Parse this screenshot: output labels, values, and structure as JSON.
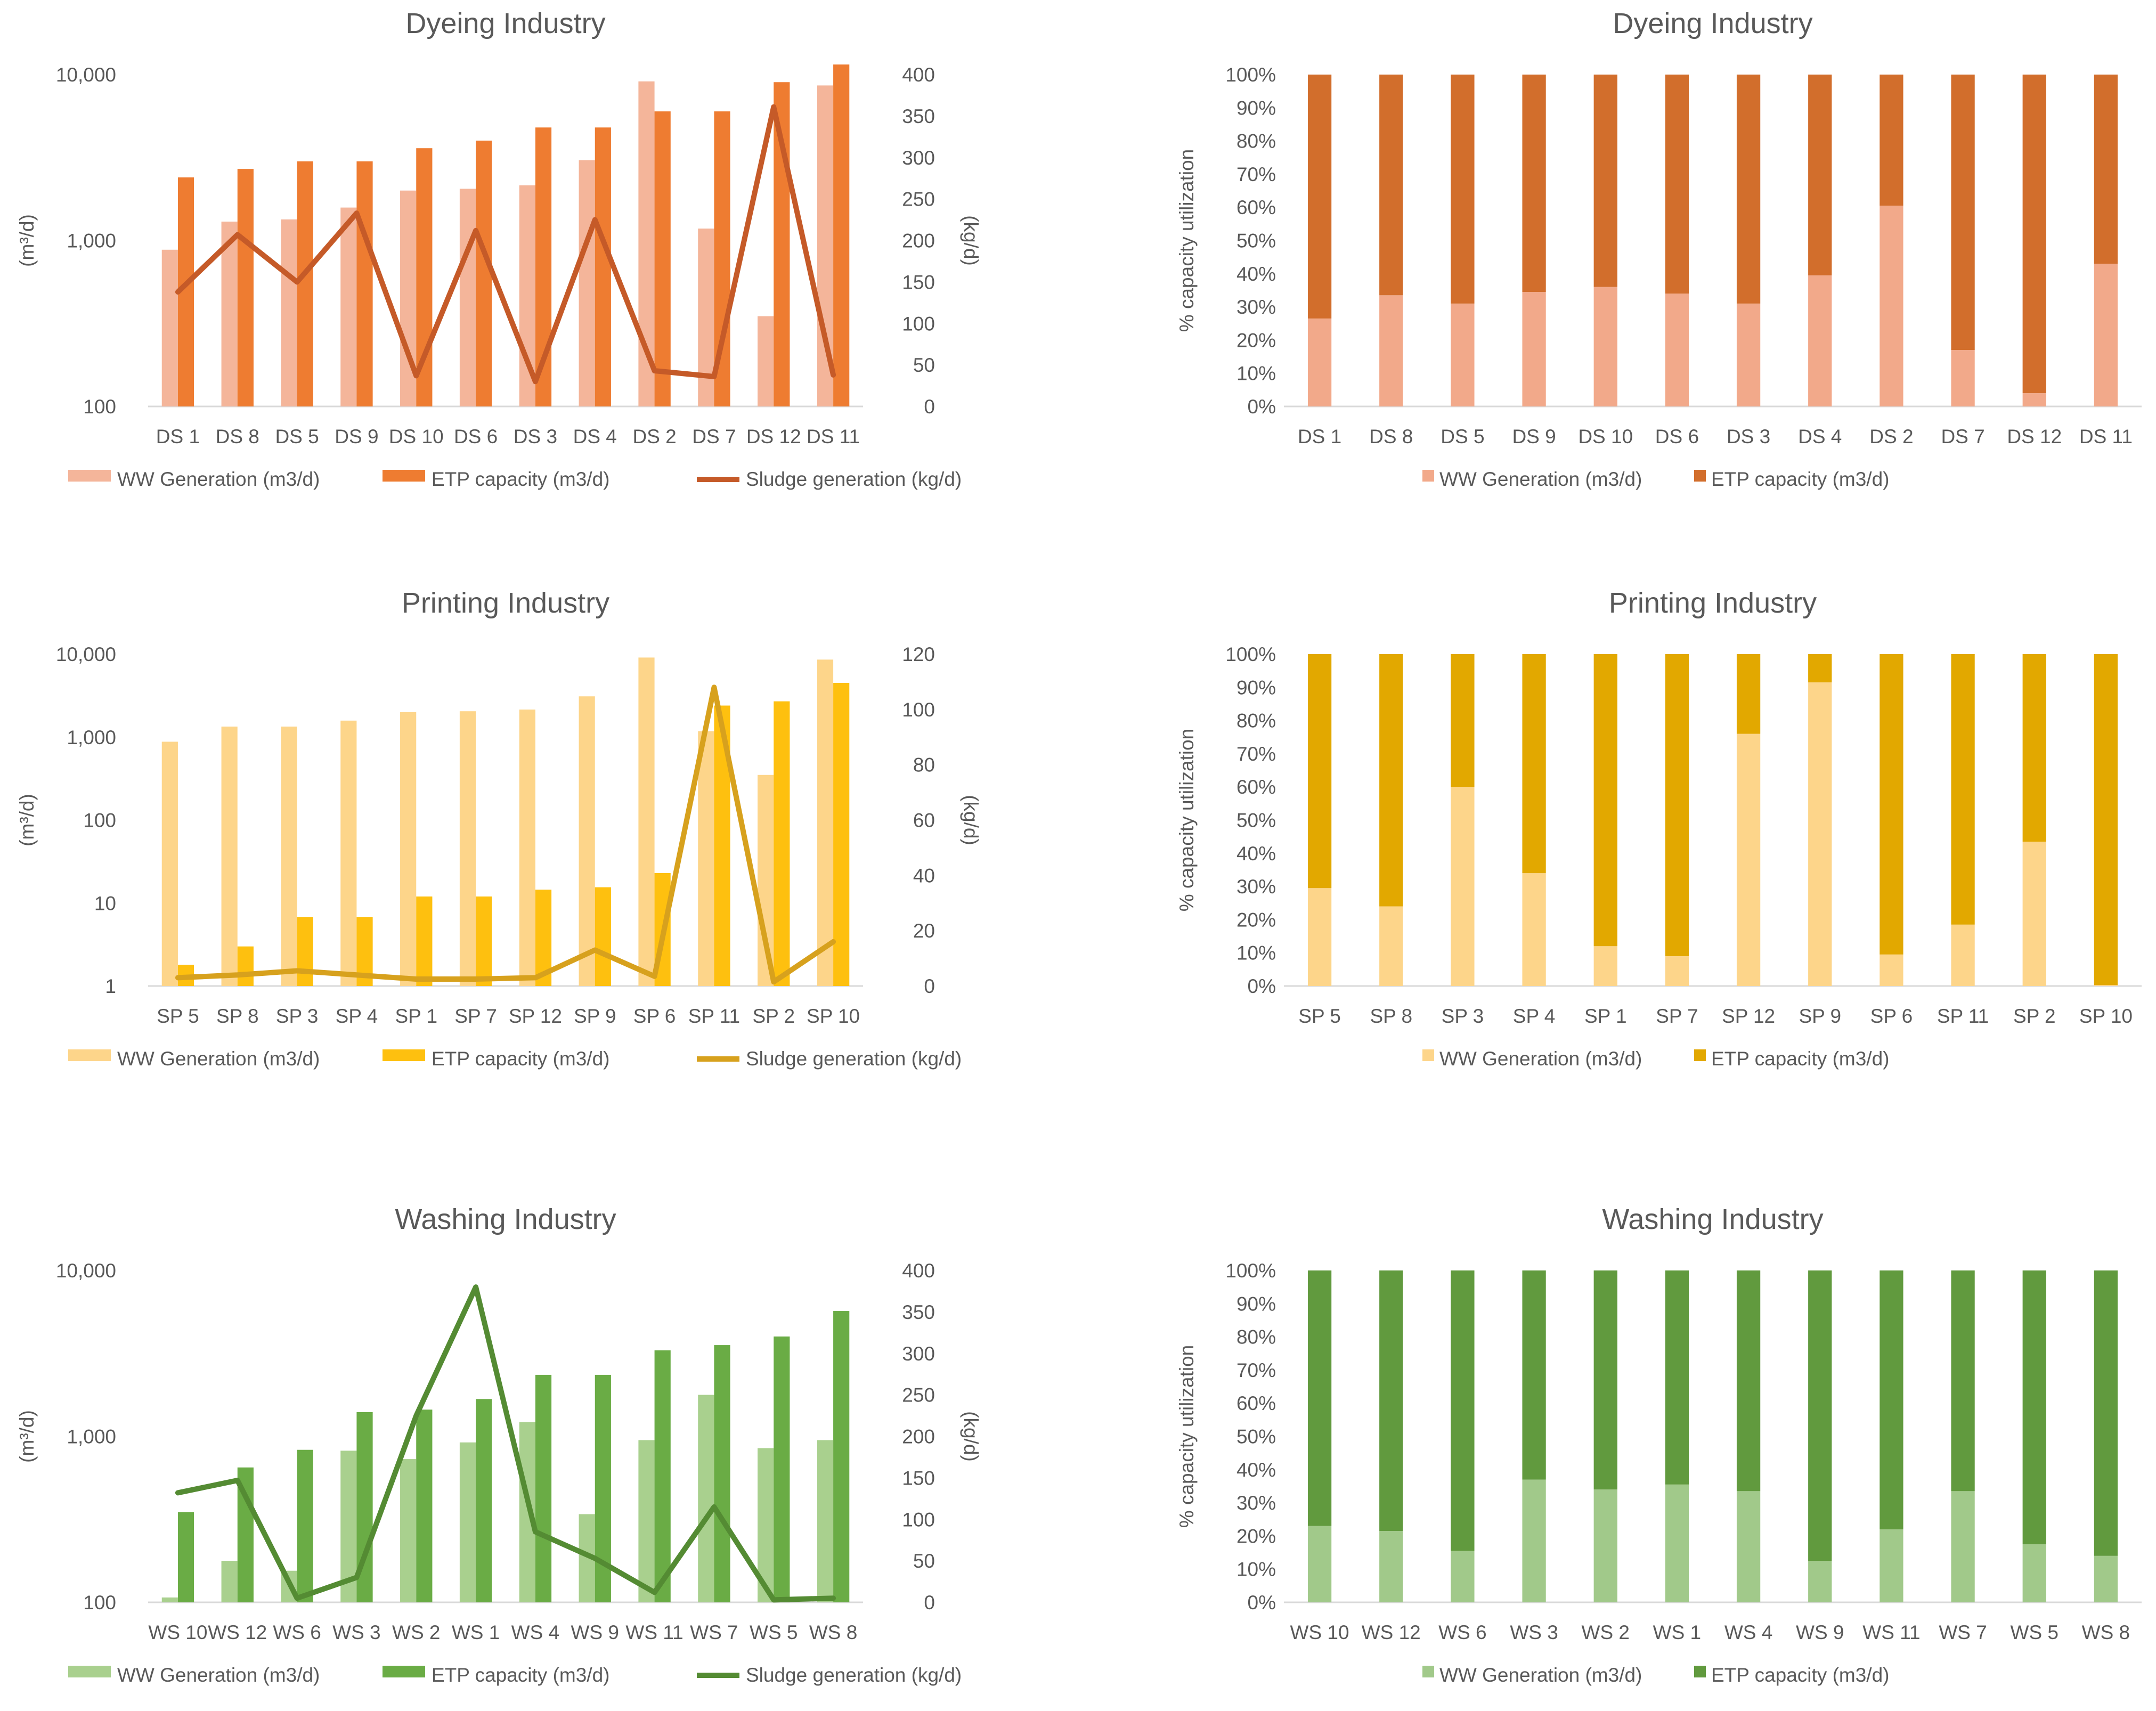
{
  "chart_data": [
    {
      "type": "bar",
      "title": "Dyeing Industry",
      "categories": [
        "DS 1",
        "DS 8",
        "DS 5",
        "DS 9",
        "DS 10",
        "DS 6",
        "DS 3",
        "DS 4",
        "DS 2",
        "DS 7",
        "DS 12",
        "DS 11"
      ],
      "ylabel": "(m³/d)",
      "y2label": "(kg/d)",
      "yscale": "log",
      "ylim": [
        100,
        10000
      ],
      "yticks": [
        "100",
        "1,000",
        "10,000"
      ],
      "y2lim": [
        0,
        400
      ],
      "y2ticks": [
        "0",
        "50",
        "100",
        "150",
        "200",
        "250",
        "300",
        "350",
        "400"
      ],
      "series": [
        {
          "name": "WW Generation (m3/d)",
          "kind": "bar",
          "color": "#f4b59a",
          "values": [
            880,
            1300,
            1340,
            1580,
            2000,
            2050,
            2150,
            3050,
            9100,
            1180,
            350,
            8600
          ]
        },
        {
          "name": "ETP capacity (m3/d)",
          "kind": "bar",
          "color": "#ee7c31",
          "values": [
            2400,
            2700,
            3000,
            3000,
            3600,
            4000,
            4800,
            4800,
            6000,
            6000,
            9000,
            11500
          ]
        },
        {
          "name": "Sludge generation (kg/d)",
          "kind": "line",
          "axis": "right",
          "color": "#c55a28",
          "values": [
            138,
            207,
            150,
            233,
            37,
            212,
            30,
            225,
            43,
            36,
            361,
            38
          ]
        }
      ]
    },
    {
      "type": "bar",
      "stacked": "percent",
      "title": "Dyeing Industry",
      "categories": [
        "DS 1",
        "DS 8",
        "DS 5",
        "DS 9",
        "DS 10",
        "DS 6",
        "DS 3",
        "DS 4",
        "DS 2",
        "DS 7",
        "DS 12",
        "DS 11"
      ],
      "ylabel": "% capacity utilization",
      "ylim": [
        0,
        100
      ],
      "yticks": [
        "0%",
        "10%",
        "20%",
        "30%",
        "40%",
        "50%",
        "60%",
        "70%",
        "80%",
        "90%",
        "100%"
      ],
      "series": [
        {
          "name": "WW Generation (m3/d)",
          "color": "#f2a98a",
          "values": [
            26.5,
            33.5,
            31,
            34.5,
            36,
            34,
            31,
            39.5,
            60.5,
            17,
            4,
            43
          ]
        },
        {
          "name": "ETP capacity (m3/d)",
          "color": "#d26e2c",
          "values": [
            73.5,
            66.5,
            69,
            65.5,
            64,
            66,
            69,
            60.5,
            39.5,
            83,
            96,
            57
          ]
        }
      ]
    },
    {
      "type": "bar",
      "title": "Printing Industry",
      "categories": [
        "SP 5",
        "SP 8",
        "SP 3",
        "SP 4",
        "SP 1",
        "SP 7",
        "SP 12",
        "SP 9",
        "SP 6",
        "SP 11",
        "SP 2",
        "SP 10"
      ],
      "ylabel": "(m³/d)",
      "y2label": "(kg/d)",
      "yscale": "log",
      "ylim": [
        1,
        10000
      ],
      "yticks": [
        "1",
        "10",
        "100",
        "1,000",
        "10,000"
      ],
      "y2lim": [
        0,
        120
      ],
      "y2ticks": [
        "0",
        "20",
        "40",
        "60",
        "80",
        "100",
        "120"
      ],
      "series": [
        {
          "name": "WW Generation (m3/d)",
          "kind": "bar",
          "color": "#fdd58a",
          "values": [
            880,
            1340,
            1340,
            1580,
            2000,
            2050,
            2150,
            3100,
            9100,
            1180,
            350,
            8600
          ]
        },
        {
          "name": "ETP capacity (m3/d)",
          "kind": "bar",
          "color": "#fec00f",
          "values": [
            1.8,
            3,
            6.8,
            6.8,
            12,
            12,
            14.5,
            15.5,
            23,
            2400,
            2700,
            4500
          ]
        },
        {
          "name": "Sludge generation (kg/d)",
          "kind": "line",
          "axis": "right",
          "color": "#d7a11d",
          "values": [
            3,
            4,
            5.5,
            4,
            2.5,
            2.5,
            3,
            13,
            3.5,
            108,
            1.5,
            16
          ]
        }
      ]
    },
    {
      "type": "bar",
      "stacked": "percent",
      "title": "Printing Industry",
      "categories": [
        "SP 5",
        "SP 8",
        "SP 3",
        "SP 4",
        "SP 1",
        "SP 7",
        "SP 12",
        "SP 9",
        "SP 6",
        "SP 11",
        "SP 2",
        "SP 10"
      ],
      "ylabel": "% capacity utilization",
      "ylim": [
        0,
        100
      ],
      "yticks": [
        "0%",
        "10%",
        "20%",
        "30%",
        "40%",
        "50%",
        "60%",
        "70%",
        "80%",
        "90%",
        "100%"
      ],
      "series": [
        {
          "name": "WW Generation (m3/d)",
          "color": "#fdd58a",
          "values": [
            29.5,
            24,
            60,
            34,
            12,
            9,
            76,
            91.5,
            9.5,
            18.5,
            43.5,
            0.3
          ]
        },
        {
          "name": "ETP capacity (m3/d)",
          "color": "#e2a800",
          "values": [
            70.5,
            76,
            40,
            66,
            88,
            91,
            24,
            8.5,
            90.5,
            81.5,
            56.5,
            99.7
          ]
        }
      ]
    },
    {
      "type": "bar",
      "title": "Washing Industry",
      "categories": [
        "WS 10",
        "WS 12",
        "WS 6",
        "WS 3",
        "WS 2",
        "WS 1",
        "WS 4",
        "WS 9",
        "WS 11",
        "WS 7",
        "WS 5",
        "WS 8"
      ],
      "ylabel": "(m³/d)",
      "y2label": "(kg/d)",
      "yscale": "log",
      "ylim": [
        100,
        10000
      ],
      "yticks": [
        "100",
        "1,000",
        "10,000"
      ],
      "y2lim": [
        0,
        400
      ],
      "y2ticks": [
        "0",
        "50",
        "100",
        "150",
        "200",
        "250",
        "300",
        "350",
        "400"
      ],
      "series": [
        {
          "name": "WW Generation (m3/d)",
          "kind": "bar",
          "color": "#a9d08e",
          "values": [
            107,
            178,
            155,
            820,
            730,
            920,
            1220,
            340,
            950,
            1780,
            850,
            950
          ]
        },
        {
          "name": "ETP capacity (m3/d)",
          "kind": "bar",
          "color": "#6aac45",
          "values": [
            350,
            650,
            830,
            1400,
            1450,
            1680,
            2350,
            2350,
            3300,
            3550,
            4000,
            5700
          ]
        },
        {
          "name": "Sludge generation (kg/d)",
          "kind": "line",
          "axis": "right",
          "color": "#548b33",
          "values": [
            132,
            147,
            5,
            30,
            225,
            380,
            85,
            53,
            12,
            115,
            3,
            5
          ]
        }
      ]
    },
    {
      "type": "bar",
      "stacked": "percent",
      "title": "Washing Industry",
      "categories": [
        "WS 10",
        "WS 12",
        "WS 6",
        "WS 3",
        "WS 2",
        "WS 1",
        "WS 4",
        "WS 9",
        "WS 11",
        "WS 7",
        "WS 5",
        "WS 8"
      ],
      "ylabel": "% capacity utilization",
      "ylim": [
        0,
        100
      ],
      "yticks": [
        "0%",
        "10%",
        "20%",
        "30%",
        "40%",
        "50%",
        "60%",
        "70%",
        "80%",
        "90%",
        "100%"
      ],
      "series": [
        {
          "name": "WW Generation (m3/d)",
          "color": "#a1c98a",
          "values": [
            23,
            21.5,
            15.5,
            37,
            34,
            35.5,
            33.5,
            12.5,
            22,
            33.5,
            17.5,
            14
          ]
        },
        {
          "name": "ETP capacity (m3/d)",
          "color": "#619a3e",
          "values": [
            77,
            78.5,
            84.5,
            63,
            66,
            64.5,
            66.5,
            87.5,
            78,
            66.5,
            82.5,
            86
          ]
        }
      ]
    }
  ]
}
